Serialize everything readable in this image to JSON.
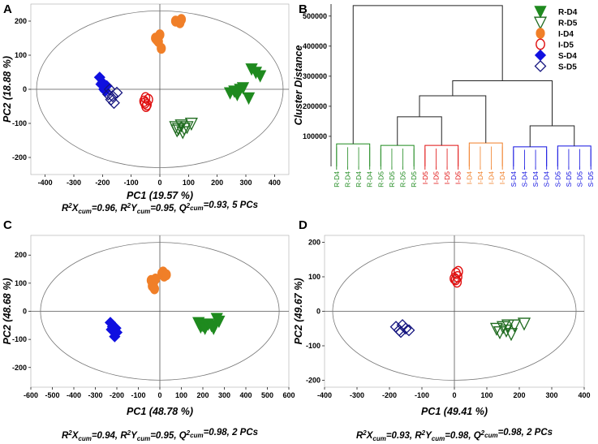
{
  "colors": {
    "R": "#1f8a1f",
    "I": "#f07f28",
    "S": "#1010e0",
    "R_dark": "#1f6b1f",
    "I_red": "#e01010",
    "S_dark": "#15157f"
  },
  "chart_data": [
    {
      "type": "scatter",
      "panel": "A",
      "xlabel": "PC1 (19.57 %)",
      "ylabel": "PC2 (18.88 %)",
      "xlim": [
        -450,
        450
      ],
      "ylim": [
        -250,
        250
      ],
      "xticks": [
        -400,
        -300,
        -200,
        -100,
        0,
        100,
        200,
        300,
        400
      ],
      "yticks": [
        -200,
        -100,
        0,
        100,
        200
      ],
      "ellipse": {
        "rx": 430,
        "ry": 230
      },
      "stats": "R²Xcum=0.96, R²Ycum=0.95, Q²cum=0.93, 5 PCs",
      "series": [
        {
          "name": "R-D4",
          "marker": "tri-down-filled",
          "color": "#1f8a1f",
          "points": [
            [
              245,
              -10
            ],
            [
              260,
              -5
            ],
            [
              280,
              0
            ],
            [
              290,
              5
            ],
            [
              320,
              60
            ],
            [
              335,
              50
            ],
            [
              350,
              40
            ],
            [
              310,
              -25
            ],
            [
              270,
              -15
            ]
          ]
        },
        {
          "name": "R-D5",
          "marker": "tri-down-open",
          "color": "#1f6b1f",
          "points": [
            [
              55,
              -110
            ],
            [
              65,
              -115
            ],
            [
              75,
              -105
            ],
            [
              85,
              -115
            ],
            [
              95,
              -110
            ],
            [
              110,
              -100
            ],
            [
              60,
              -120
            ],
            [
              80,
              -125
            ]
          ]
        },
        {
          "name": "I-D4",
          "marker": "circle-filled",
          "color": "#f07f28",
          "points": [
            [
              55,
              200
            ],
            [
              70,
              195
            ],
            [
              75,
              205
            ],
            [
              -15,
              150
            ],
            [
              -5,
              140
            ],
            [
              0,
              160
            ],
            [
              5,
              120
            ],
            [
              -10,
              145
            ]
          ]
        },
        {
          "name": "I-D5",
          "marker": "circle-open",
          "color": "#e01010",
          "points": [
            [
              -50,
              -25
            ],
            [
              -45,
              -45
            ],
            [
              -55,
              -35
            ],
            [
              -40,
              -30
            ],
            [
              -48,
              -50
            ],
            [
              -52,
              -40
            ]
          ]
        },
        {
          "name": "S-D4",
          "marker": "diamond-filled",
          "color": "#1010e0",
          "points": [
            [
              -210,
              35
            ],
            [
              -200,
              20
            ],
            [
              -195,
              0
            ],
            [
              -185,
              10
            ],
            [
              -205,
              15
            ],
            [
              -190,
              -5
            ]
          ]
        },
        {
          "name": "S-D5",
          "marker": "diamond-open",
          "color": "#15157f",
          "points": [
            [
              -180,
              -15
            ],
            [
              -170,
              -30
            ],
            [
              -160,
              -40
            ],
            [
              -150,
              -10
            ],
            [
              -165,
              -20
            ],
            [
              -175,
              0
            ]
          ]
        }
      ]
    },
    {
      "type": "dendrogram",
      "panel": "B",
      "ylabel": "Cluster Distance",
      "ylim": [
        0,
        540000
      ],
      "yticks": [
        100000,
        200000,
        300000,
        400000,
        500000
      ],
      "leaves": [
        {
          "label": "R-D4",
          "color": "#1f8a1f"
        },
        {
          "label": "R-D4",
          "color": "#1f8a1f"
        },
        {
          "label": "R-D4",
          "color": "#1f8a1f"
        },
        {
          "label": "R-D4",
          "color": "#1f8a1f"
        },
        {
          "label": "R-D5",
          "color": "#1f8a1f"
        },
        {
          "label": "R-D5",
          "color": "#1f8a1f"
        },
        {
          "label": "R-D5",
          "color": "#1f8a1f"
        },
        {
          "label": "R-D5",
          "color": "#1f8a1f"
        },
        {
          "label": "I-D5",
          "color": "#e01010"
        },
        {
          "label": "I-D5",
          "color": "#e01010"
        },
        {
          "label": "I-D5",
          "color": "#e01010"
        },
        {
          "label": "I-D5",
          "color": "#e01010"
        },
        {
          "label": "I-D4",
          "color": "#f07f28"
        },
        {
          "label": "I-D4",
          "color": "#f07f28"
        },
        {
          "label": "I-D4",
          "color": "#f07f28"
        },
        {
          "label": "I-D4",
          "color": "#f07f28"
        },
        {
          "label": "S-D4",
          "color": "#1010e0"
        },
        {
          "label": "S-D4",
          "color": "#1010e0"
        },
        {
          "label": "S-D4",
          "color": "#1010e0"
        },
        {
          "label": "S-D4",
          "color": "#1010e0"
        },
        {
          "label": "S-D5",
          "color": "#1010e0"
        },
        {
          "label": "S-D5",
          "color": "#1010e0"
        },
        {
          "label": "S-D5",
          "color": "#1010e0"
        },
        {
          "label": "S-D5",
          "color": "#1010e0"
        }
      ],
      "merges": [
        {
          "left": 0,
          "right": 3,
          "height": 75000,
          "color": "#1f8a1f"
        },
        {
          "left": 4,
          "right": 7,
          "height": 70000,
          "color": "#1f8a1f"
        },
        {
          "left": 8,
          "right": 11,
          "height": 70000,
          "color": "#e01010"
        },
        {
          "left": 12,
          "right": 15,
          "height": 78000,
          "color": "#f07f28"
        },
        {
          "left": 16,
          "right": 19,
          "height": 65000,
          "color": "#1010e0"
        },
        {
          "left": 20,
          "right": 23,
          "height": 68000,
          "color": "#1010e0"
        },
        {
          "left": 5.5,
          "right": 9.5,
          "height": 165000,
          "color": "#222222"
        },
        {
          "left": 7.5,
          "right": 13.5,
          "height": 235000,
          "color": "#222222"
        },
        {
          "left": 17.5,
          "right": 21.5,
          "height": 135000,
          "color": "#222222"
        },
        {
          "left": 10.5,
          "right": 19.5,
          "height": 285000,
          "color": "#222222"
        },
        {
          "left": 1.5,
          "right": 15,
          "height": 535000,
          "color": "#222222"
        }
      ]
    },
    {
      "type": "scatter",
      "panel": "C",
      "xlabel": "PC1 (48.78 %)",
      "ylabel": "PC2 (48.68 %)",
      "xlim": [
        -600,
        600
      ],
      "ylim": [
        -270,
        270
      ],
      "xticks": [
        -600,
        -500,
        -400,
        -300,
        -200,
        -100,
        0,
        100,
        200,
        300,
        400,
        500,
        600
      ],
      "yticks": [
        -200,
        -100,
        0,
        100,
        200
      ],
      "ellipse": {
        "rx": 555,
        "ry": 245
      },
      "stats": "R²Xcum=0.94, R²Ycum=0.95, Q²cum=0.98, 2 PCs",
      "series": [
        {
          "name": "R-D4",
          "marker": "tri-down-filled",
          "color": "#1f8a1f",
          "points": [
            [
              180,
              -40
            ],
            [
              190,
              -55
            ],
            [
              200,
              -50
            ],
            [
              210,
              -60
            ],
            [
              225,
              -45
            ],
            [
              250,
              -60
            ],
            [
              265,
              -25
            ],
            [
              275,
              -35
            ],
            [
              240,
              -50
            ]
          ]
        },
        {
          "name": "I-D4",
          "marker": "circle-filled",
          "color": "#f07f28",
          "points": [
            [
              -40,
              110
            ],
            [
              -35,
              90
            ],
            [
              -30,
              100
            ],
            [
              -20,
              115
            ],
            [
              -25,
              80
            ],
            [
              10,
              135
            ],
            [
              20,
              125
            ],
            [
              15,
              140
            ],
            [
              30,
              130
            ]
          ]
        },
        {
          "name": "S-D4",
          "marker": "diamond-filled",
          "color": "#1010e0",
          "points": [
            [
              -230,
              -40
            ],
            [
              -220,
              -55
            ],
            [
              -215,
              -70
            ],
            [
              -210,
              -90
            ],
            [
              -200,
              -75
            ],
            [
              -225,
              -65
            ],
            [
              -205,
              -60
            ]
          ]
        }
      ]
    },
    {
      "type": "scatter",
      "panel": "D",
      "xlabel": "PC1 (49.41 %)",
      "ylabel": "PC2 (49.67 %)",
      "xlim": [
        -400,
        400
      ],
      "ylim": [
        -220,
        220
      ],
      "xticks": [
        -400,
        -300,
        -200,
        -100,
        0,
        100,
        200,
        300,
        400
      ],
      "yticks": [
        -200,
        -100,
        0,
        100,
        200
      ],
      "ellipse": {
        "rx": 375,
        "ry": 200
      },
      "stats": "R²Xcum=0.93, R²Ycum=0.98, Q²cum=0.98, 2 PCs",
      "series": [
        {
          "name": "R-D5",
          "marker": "tri-down-open",
          "color": "#1f6b1f",
          "points": [
            [
              130,
              -50
            ],
            [
              140,
              -60
            ],
            [
              150,
              -45
            ],
            [
              160,
              -55
            ],
            [
              165,
              -40
            ],
            [
              175,
              -65
            ],
            [
              185,
              -40
            ],
            [
              215,
              -35
            ]
          ]
        },
        {
          "name": "I-D5",
          "marker": "circle-open",
          "color": "#e01010",
          "points": [
            [
              0,
              95
            ],
            [
              5,
              110
            ],
            [
              10,
              100
            ],
            [
              8,
              85
            ],
            [
              12,
              115
            ],
            [
              4,
              92
            ]
          ]
        },
        {
          "name": "S-D5",
          "marker": "diamond-open",
          "color": "#15157f",
          "points": [
            [
              -180,
              -45
            ],
            [
              -170,
              -55
            ],
            [
              -160,
              -40
            ],
            [
              -150,
              -50
            ],
            [
              -140,
              -55
            ],
            [
              -165,
              -60
            ]
          ]
        }
      ]
    }
  ],
  "legend": {
    "items": [
      {
        "label": "R-D4",
        "marker": "tri-down-filled",
        "color": "#1f8a1f"
      },
      {
        "label": "R-D5",
        "marker": "tri-down-open",
        "color": "#1f6b1f"
      },
      {
        "label": "I-D4",
        "marker": "circle-filled",
        "color": "#f07f28"
      },
      {
        "label": "I-D5",
        "marker": "circle-open",
        "color": "#e01010"
      },
      {
        "label": "S-D4",
        "marker": "diamond-filled",
        "color": "#1010e0"
      },
      {
        "label": "S-D5",
        "marker": "diamond-open",
        "color": "#15157f"
      }
    ]
  },
  "panels": {
    "A": "A",
    "B": "B",
    "C": "C",
    "D": "D"
  }
}
